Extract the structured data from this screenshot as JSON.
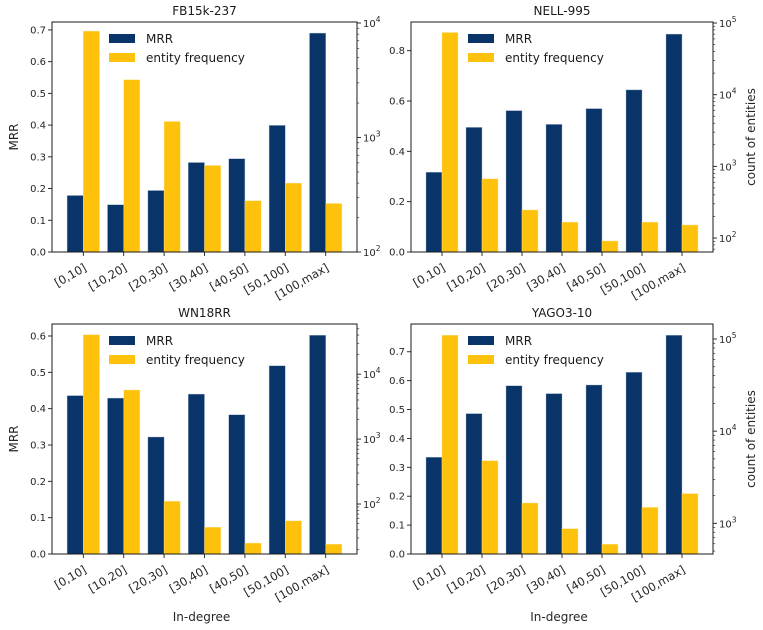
{
  "figure": {
    "x_axis_label": "In-degree",
    "left_axis_label": "MRR",
    "right_axis_label": "count of entities",
    "colors": {
      "mrr": "#08346a",
      "entity_frequency": "#fec20c"
    }
  },
  "chart_data": [
    {
      "type": "bar",
      "title": "FB15k-237",
      "categories": [
        "[0,10]",
        "[10,20]",
        "[20,30]",
        "[30,40]",
        "[40,50]",
        "[50,100]",
        "[100,max]"
      ],
      "series": [
        {
          "name": "MRR",
          "axis": "left",
          "values": [
            0.178,
            0.149,
            0.194,
            0.282,
            0.294,
            0.399,
            0.69
          ]
        },
        {
          "name": "entity frequency",
          "axis": "right",
          "scale": "log",
          "values": [
            8500,
            3200,
            1380,
            570,
            280,
            400,
            265
          ]
        }
      ],
      "xlabel": "",
      "ylabel": "MRR",
      "ylabel_right": "",
      "ylim": [
        0,
        0.725
      ],
      "yticks": [
        "0.0",
        "0.1",
        "0.2",
        "0.3",
        "0.4",
        "0.5",
        "0.6",
        "0.7"
      ],
      "ytick_values": [
        0,
        0.1,
        0.2,
        0.3,
        0.4,
        0.5,
        0.6,
        0.7
      ],
      "ylim_right_log10": [
        2.0,
        4.009
      ],
      "yticks_right": [
        {
          "exp": 2,
          "label": "10",
          "sup": "2"
        },
        {
          "exp": 3,
          "label": "10",
          "sup": "3"
        },
        {
          "exp": 4,
          "label": "10",
          "sup": "4"
        }
      ],
      "legend": {
        "placement": "upper-center",
        "entries": [
          "MRR",
          "entity frequency"
        ]
      },
      "grid": false
    },
    {
      "type": "bar",
      "title": "NELL-995",
      "categories": [
        "[0,10]",
        "[10,20]",
        "[20,30]",
        "[30,40]",
        "[40,50]",
        "[50,100]",
        "[100,max]"
      ],
      "series": [
        {
          "name": "MRR",
          "axis": "left",
          "values": [
            0.317,
            0.495,
            0.562,
            0.507,
            0.57,
            0.644,
            0.866
          ]
        },
        {
          "name": "entity frequency",
          "axis": "right",
          "scale": "log",
          "values": [
            73600,
            668,
            246,
            167,
            91,
            167,
            152
          ]
        }
      ],
      "xlabel": "",
      "ylabel": "",
      "ylabel_right": "count of entities",
      "ylim": [
        0,
        0.914
      ],
      "yticks": [
        "0.0",
        "0.2",
        "0.4",
        "0.6",
        "0.8"
      ],
      "ytick_values": [
        0,
        0.2,
        0.4,
        0.6,
        0.8
      ],
      "ylim_right_log10": [
        1.805,
        5.014
      ],
      "yticks_right": [
        {
          "exp": 2,
          "label": "10",
          "sup": "2"
        },
        {
          "exp": 3,
          "label": "10",
          "sup": "3"
        },
        {
          "exp": 4,
          "label": "10",
          "sup": "4"
        },
        {
          "exp": 5,
          "label": "10",
          "sup": "5"
        }
      ],
      "legend": {
        "placement": "upper-center",
        "entries": [
          "MRR",
          "entity frequency"
        ]
      },
      "grid": false
    },
    {
      "type": "bar",
      "title": "WN18RR",
      "categories": [
        "[0,10]",
        "[10,20]",
        "[20,30]",
        "[30,40]",
        "[40,50]",
        "[50,100]",
        "[100,max]"
      ],
      "series": [
        {
          "name": "MRR",
          "axis": "left",
          "values": [
            0.436,
            0.429,
            0.322,
            0.44,
            0.383,
            0.518,
            0.602
          ]
        },
        {
          "name": "entity frequency",
          "axis": "right",
          "scale": "log",
          "values": [
            40500,
            5700,
            110,
            44,
            25,
            55,
            24
          ]
        }
      ],
      "xlabel": "In-degree",
      "ylabel": "MRR",
      "ylabel_right": "",
      "ylim": [
        0,
        0.633
      ],
      "yticks": [
        "0.0",
        "0.1",
        "0.2",
        "0.3",
        "0.4",
        "0.5",
        "0.6"
      ],
      "ytick_values": [
        0,
        0.1,
        0.2,
        0.3,
        0.4,
        0.5,
        0.6
      ],
      "ylim_right_log10": [
        1.23,
        4.773
      ],
      "yticks_right": [
        {
          "exp": 2,
          "label": "10",
          "sup": "2"
        },
        {
          "exp": 3,
          "label": "10",
          "sup": "3"
        },
        {
          "exp": 4,
          "label": "10",
          "sup": "4"
        }
      ],
      "legend": {
        "placement": "upper-center",
        "entries": [
          "MRR",
          "entity frequency"
        ]
      },
      "grid": false
    },
    {
      "type": "bar",
      "title": "YAGO3-10",
      "categories": [
        "[0,10]",
        "[10,20]",
        "[20,30]",
        "[30,40]",
        "[40,50]",
        "[50,100]",
        "[100,max]"
      ],
      "series": [
        {
          "name": "MRR",
          "axis": "left",
          "values": [
            0.335,
            0.486,
            0.582,
            0.555,
            0.585,
            0.629,
            0.757
          ]
        },
        {
          "name": "entity frequency",
          "axis": "right",
          "scale": "log",
          "values": [
            110000,
            4770,
            1660,
            875,
            592,
            1490,
            2100
          ]
        }
      ],
      "xlabel": "In-degree",
      "ylabel": "",
      "ylabel_right": "count of entities",
      "ylim": [
        0,
        0.796
      ],
      "yticks": [
        "0.0",
        "0.1",
        "0.2",
        "0.3",
        "0.4",
        "0.5",
        "0.6",
        "0.7"
      ],
      "ytick_values": [
        0,
        0.1,
        0.2,
        0.3,
        0.4,
        0.5,
        0.6,
        0.7
      ],
      "ylim_right_log10": [
        2.667,
        5.163
      ],
      "yticks_right": [
        {
          "exp": 3,
          "label": "10",
          "sup": "3"
        },
        {
          "exp": 4,
          "label": "10",
          "sup": "4"
        },
        {
          "exp": 5,
          "label": "10",
          "sup": "5"
        }
      ],
      "legend": {
        "placement": "upper-center",
        "entries": [
          "MRR",
          "entity frequency"
        ]
      },
      "grid": false
    }
  ]
}
